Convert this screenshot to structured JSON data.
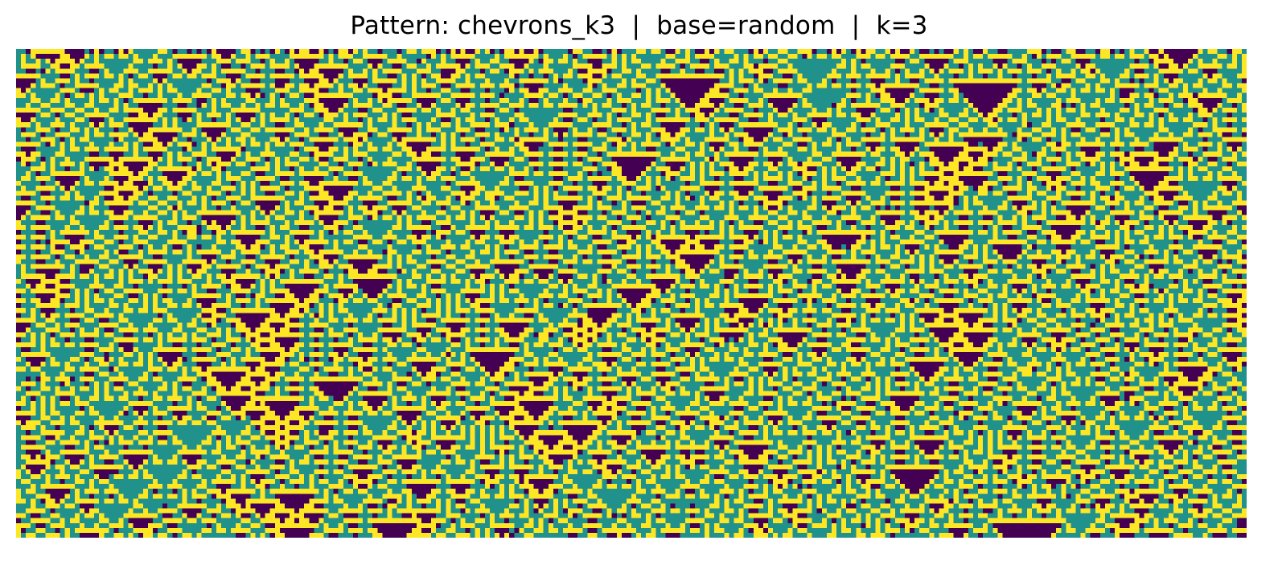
{
  "chart_data": {
    "type": "heatmap",
    "title": "Pattern: chevrons_k3  |  base=random  |  k=3",
    "xlabel": "",
    "ylabel": "",
    "grid": false,
    "legend": "none",
    "colormap": "viridis",
    "states": [
      0,
      1,
      2
    ],
    "colors": [
      "#440154",
      "#21918c",
      "#fde725"
    ],
    "rows": 100,
    "cols": 252,
    "seed_row": "random",
    "rule": "chevrons_k3",
    "k": 3
  }
}
